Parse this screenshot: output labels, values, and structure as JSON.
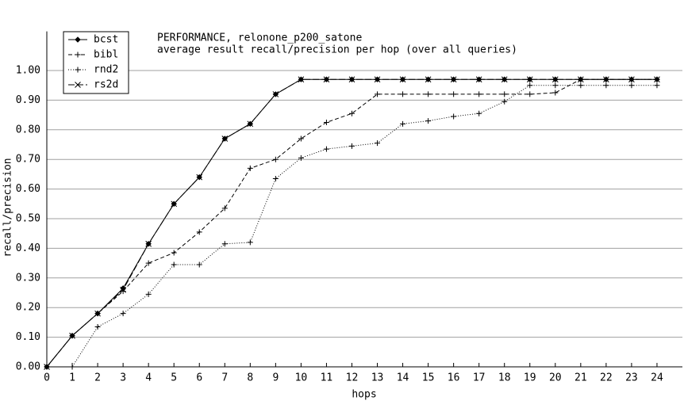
{
  "chart_data": {
    "type": "line",
    "title": "PERFORMANCE, relonone_p200_satone",
    "subtitle": "average result recall/precision per hop (over all queries)",
    "x_label": "hops",
    "y_label": "recall/precision",
    "x": [
      0,
      1,
      2,
      3,
      4,
      5,
      6,
      7,
      8,
      9,
      10,
      11,
      12,
      13,
      14,
      15,
      16,
      17,
      18,
      19,
      20,
      21,
      22,
      23,
      24
    ],
    "series": [
      {
        "name": "bcst",
        "color": "#000000",
        "dash": "none",
        "marker": "diamond",
        "values": [
          0,
          0.105,
          0.18,
          0.265,
          0.415,
          0.55,
          0.64,
          0.77,
          0.82,
          0.92,
          0.97,
          0.97,
          0.97,
          0.97,
          0.97,
          0.97,
          0.97,
          0.97,
          0.97,
          0.97,
          0.97,
          0.97,
          0.97,
          0.97,
          0.97
        ]
      },
      {
        "name": "bibl",
        "color": "#000000",
        "dash": "5,3",
        "marker": "plus",
        "values": [
          0,
          0.105,
          0.18,
          0.255,
          0.35,
          0.385,
          0.455,
          0.535,
          0.67,
          0.7,
          0.77,
          0.825,
          0.855,
          0.92,
          0.92,
          0.92,
          0.92,
          0.92,
          0.92,
          0.92,
          0.925,
          0.97,
          0.97,
          0.97,
          0.97
        ]
      },
      {
        "name": "rnd2",
        "color": "#000000",
        "dash": "1,2",
        "marker": "plus",
        "values": [
          0,
          0,
          0.135,
          0.18,
          0.245,
          0.345,
          0.345,
          0.415,
          0.42,
          0.635,
          0.705,
          0.735,
          0.745,
          0.755,
          0.82,
          0.83,
          0.845,
          0.855,
          0.895,
          0.95,
          0.95,
          0.95,
          0.95,
          0.95,
          0.95
        ]
      },
      {
        "name": "rs2d",
        "color": "#000000",
        "dash": "8,3",
        "marker": "cross",
        "values": [
          0,
          0.105,
          0.18,
          0.26,
          0.415,
          0.55,
          0.64,
          0.77,
          0.82,
          0.92,
          0.97,
          0.97,
          0.97,
          0.97,
          0.97,
          0.97,
          0.97,
          0.97,
          0.97,
          0.97,
          0.97,
          0.97,
          0.97,
          0.97,
          0.97
        ]
      }
    ],
    "xlim": [
      0,
      25
    ],
    "xticks": [
      0,
      1,
      2,
      3,
      4,
      5,
      6,
      7,
      8,
      9,
      10,
      11,
      12,
      13,
      14,
      15,
      16,
      17,
      18,
      19,
      20,
      21,
      22,
      23,
      24
    ],
    "ylim": [
      0,
      1.1
    ],
    "yticks": [
      {
        "value": 0,
        "label": "0.00"
      },
      {
        "value": 0.1,
        "label": "0.10"
      },
      {
        "value": 0.2,
        "label": "0.20"
      },
      {
        "value": 0.3,
        "label": "0.30"
      },
      {
        "value": 0.4,
        "label": "0.40"
      },
      {
        "value": 0.5,
        "label": "0.50"
      },
      {
        "value": 0.6,
        "label": "0.60"
      },
      {
        "value": 0.7,
        "label": "0.70"
      },
      {
        "value": 0.8,
        "label": "0.80"
      },
      {
        "value": 0.9,
        "label": "0.90"
      },
      {
        "value": 1,
        "label": "1.00"
      }
    ],
    "grid": true,
    "legend": "top-left"
  }
}
